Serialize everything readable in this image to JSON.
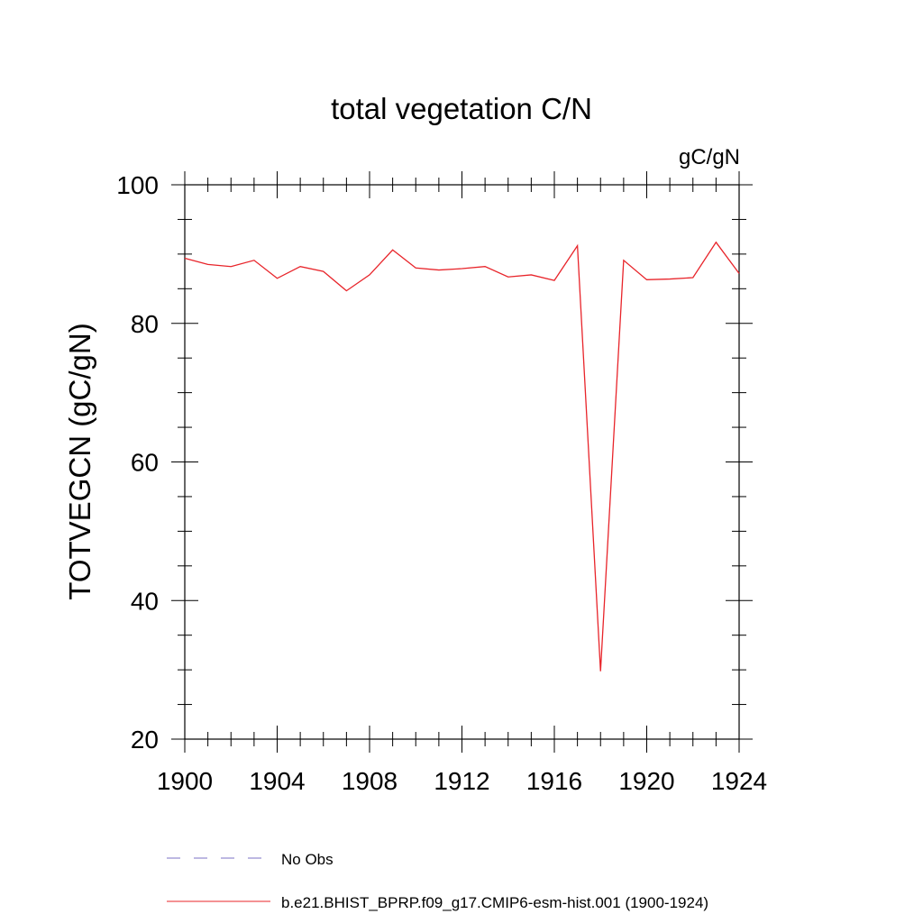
{
  "chart_data": {
    "type": "line",
    "title": "total vegetation C/N",
    "units": "gC/gN",
    "ylabel": "TOTVEGCN  (gC/gN)",
    "xlabel": "",
    "xlim": [
      1900,
      1924
    ],
    "ylim": [
      20,
      100
    ],
    "x_ticks": [
      1900,
      1904,
      1908,
      1912,
      1916,
      1920,
      1924
    ],
    "x_minor_ticks": [
      1901,
      1902,
      1903,
      1905,
      1906,
      1907,
      1909,
      1910,
      1911,
      1913,
      1914,
      1915,
      1917,
      1918,
      1919,
      1921,
      1922,
      1923
    ],
    "y_ticks": [
      20,
      40,
      60,
      80,
      100
    ],
    "y_minor_ticks": [
      25,
      30,
      35,
      45,
      50,
      55,
      65,
      70,
      75,
      85,
      90,
      95
    ],
    "grid": false,
    "legend_position": "bottom",
    "series": [
      {
        "name": "No Obs",
        "color": "#7b72c4",
        "dash": "dashed",
        "x": [],
        "values": []
      },
      {
        "name": "b.e21.BHIST_BPRP.f09_g17.CMIP6-esm-hist.001 (1900-1924)",
        "color": "#e8242a",
        "dash": "solid",
        "x": [
          1900,
          1901,
          1902,
          1903,
          1904,
          1905,
          1906,
          1907,
          1908,
          1909,
          1910,
          1911,
          1912,
          1913,
          1914,
          1915,
          1916,
          1917,
          1918,
          1919,
          1920,
          1921,
          1922,
          1923,
          1924
        ],
        "values": [
          89.4,
          88.5,
          88.2,
          89.1,
          86.5,
          88.2,
          87.5,
          84.7,
          87.0,
          90.6,
          88.0,
          87.7,
          87.9,
          88.2,
          86.7,
          87.0,
          86.2,
          91.2,
          29.8,
          89.1,
          86.3,
          86.4,
          86.6,
          91.7,
          87.2
        ]
      }
    ]
  }
}
